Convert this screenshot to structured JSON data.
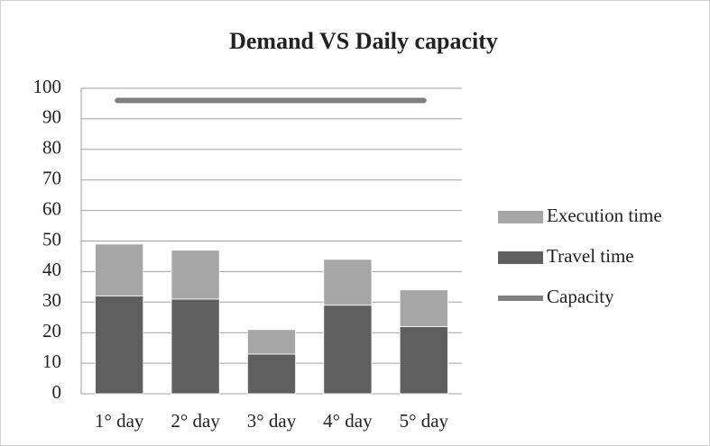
{
  "chart_data": {
    "type": "bar",
    "stacked": true,
    "title": "Demand VS Daily capacity",
    "categories": [
      "1° day",
      "2° day",
      "3° day",
      "4° day",
      "5° day"
    ],
    "series": [
      {
        "name": "Travel time",
        "color": "#5f5f5f",
        "type": "bar",
        "values": [
          32,
          31,
          13,
          29,
          22
        ]
      },
      {
        "name": "Execution time",
        "color": "#a6a6a6",
        "type": "bar",
        "values": [
          17,
          16,
          8,
          15,
          12
        ]
      },
      {
        "name": "Capacity",
        "color": "#7f7f7f",
        "type": "line",
        "values": [
          96,
          96,
          96,
          96,
          96
        ]
      }
    ],
    "ylim": [
      0,
      100
    ],
    "yticks": [
      0,
      10,
      20,
      30,
      40,
      50,
      60,
      70,
      80,
      90,
      100
    ],
    "grid": true,
    "legend": "right"
  }
}
